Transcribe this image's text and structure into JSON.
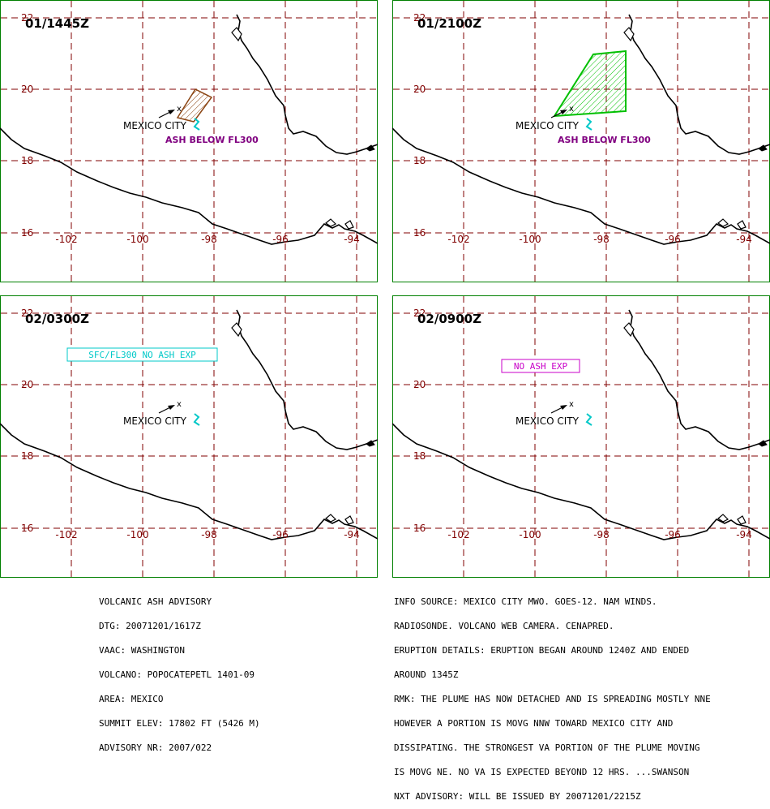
{
  "colors": {
    "border": "#008000",
    "grid": "#800000",
    "coast": "#000000",
    "ash_t0": "#8b4513",
    "ash_t1": "#00c000",
    "text_advisory": "#800080",
    "box_cyan": "#00c8c8",
    "box_magenta": "#c800c8",
    "volcano_mark": "#00c8c8"
  },
  "panels": [
    {
      "time": "01/1445Z",
      "lat_labels": [
        "22",
        "20",
        "18",
        "16"
      ],
      "lon_labels": [
        "-102",
        "-100",
        "-98",
        "-96",
        "-94"
      ],
      "city_label": "MEXICO CITY",
      "ash_type": "brown-box",
      "ash_label": "ASH BELOW FL300",
      "box_label": ""
    },
    {
      "time": "01/2100Z",
      "lat_labels": [
        "22",
        "20",
        "18",
        "16"
      ],
      "lon_labels": [
        "-102",
        "-100",
        "-98",
        "-96",
        "-94"
      ],
      "city_label": "MEXICO CITY",
      "ash_type": "green-poly",
      "ash_label": "ASH BELOW FL300",
      "box_label": ""
    },
    {
      "time": "02/0300Z",
      "lat_labels": [
        "22",
        "20",
        "18",
        "16"
      ],
      "lon_labels": [
        "-102",
        "-100",
        "-98",
        "-96",
        "-94"
      ],
      "city_label": "MEXICO CITY",
      "ash_type": "none",
      "ash_label": "",
      "box_label": "SFC/FL300 NO ASH EXP"
    },
    {
      "time": "02/0900Z",
      "lat_labels": [
        "22",
        "20",
        "18",
        "16"
      ],
      "lon_labels": [
        "-102",
        "-100",
        "-98",
        "-96",
        "-94"
      ],
      "city_label": "MEXICO CITY",
      "ash_type": "none",
      "ash_label": "",
      "box_label": "NO ASH EXP"
    }
  ],
  "advisory_left": [
    "VOLCANIC ASH ADVISORY",
    "DTG: 20071201/1617Z",
    "VAAC: WASHINGTON",
    "VOLCANO: POPOCATEPETL 1401-09",
    "AREA: MEXICO",
    "SUMMIT ELEV: 17802 FT (5426 M)",
    "ADVISORY NR: 2007/022"
  ],
  "advisory_right": [
    "INFO SOURCE: MEXICO CITY MWO. GOES-12. NAM WINDS.",
    "RADIOSONDE. VOLCANO WEB CAMERA. CENAPRED.",
    "ERUPTION DETAILS: ERUPTION BEGAN AROUND 1240Z AND ENDED",
    "AROUND 1345Z",
    "RMK: THE PLUME HAS NOW DETACHED AND IS SPREADING MOSTLY NNE",
    "HOWEVER A PORTION IS MOVG NNW TOWARD MEXICO CITY AND",
    "DISSIPATING. THE STRONGEST VA PORTION OF THE PLUME MOVING",
    "IS MOVG NE. NO VA IS EXPECTED BEYOND 12 HRS. ...SWANSON",
    "NXT ADVISORY: WILL BE ISSUED BY 20071201/2215Z"
  ]
}
